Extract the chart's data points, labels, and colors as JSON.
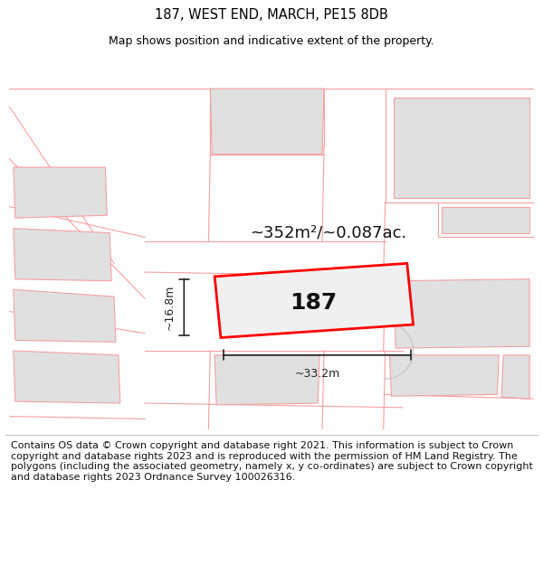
{
  "title": "187, WEST END, MARCH, PE15 8DB",
  "subtitle": "Map shows position and indicative extent of the property.",
  "footer": "Contains OS data © Crown copyright and database right 2021. This information is subject to Crown copyright and database rights 2023 and is reproduced with the permission of HM Land Registry. The polygons (including the associated geometry, namely x, y co-ordinates) are subject to Crown copyright and database rights 2023 Ordnance Survey 100026316.",
  "area_text": "~352m²/~0.087ac.",
  "width_text": "~33.2m",
  "height_text": "~16.8m",
  "property_label": "187",
  "bg_color": "#ffffff",
  "outline_color": "#ff0000",
  "line_color": "#f5a0a0",
  "grey_line_color": "#c8c8c8",
  "building_color": "#e0e0e0",
  "dim_color": "#222222",
  "title_fontsize": 10.5,
  "subtitle_fontsize": 9,
  "footer_fontsize": 8,
  "prop_label_fontsize": 18,
  "area_fontsize": 13,
  "dim_fontsize": 9
}
